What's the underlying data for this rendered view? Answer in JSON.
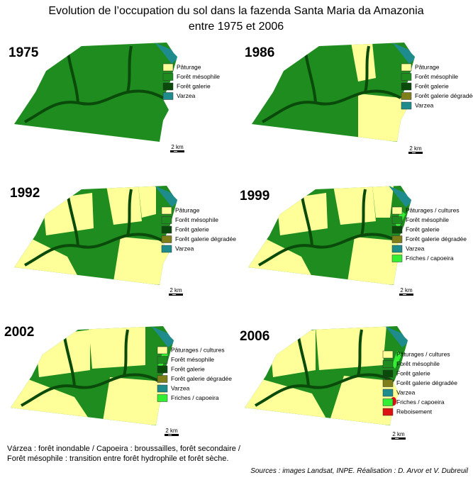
{
  "title": [
    "Evolution de l’occupation du sol dans la fazenda Santa Maria da Amazonia",
    "entre 1975 et 2006"
  ],
  "panels": [
    {
      "year": "1975",
      "scale": "2 km",
      "legend": [
        {
          "label": "Pâturage",
          "color": "#ffff99"
        },
        {
          "label": "Forêt mésophile",
          "color": "#1e8c1e"
        },
        {
          "label": "Forêt galerie",
          "color": "#0a4a0a"
        },
        {
          "label": "Varzea",
          "color": "#1e8c8c"
        }
      ]
    },
    {
      "year": "1986",
      "scale": "2 km",
      "legend": [
        {
          "label": "Pâturage",
          "color": "#ffff99"
        },
        {
          "label": "Forêt mésophile",
          "color": "#1e8c1e"
        },
        {
          "label": "Forêt galerie",
          "color": "#0a4a0a"
        },
        {
          "label": "Forêt galerie dégradée",
          "color": "#7f7f1a"
        },
        {
          "label": "Varzea",
          "color": "#1e8c8c"
        }
      ]
    },
    {
      "year": "1992",
      "scale": "2 km",
      "legend": [
        {
          "label": "Pâturage",
          "color": "#ffff99"
        },
        {
          "label": "Forêt mésophile",
          "color": "#1e8c1e"
        },
        {
          "label": "Forêt galerie",
          "color": "#0a4a0a"
        },
        {
          "label": "Forêt galerie dégradée",
          "color": "#7f7f1a"
        },
        {
          "label": "Varzea",
          "color": "#1e8c8c"
        }
      ]
    },
    {
      "year": "1999",
      "scale": "2 km",
      "legend": [
        {
          "label": "Pâturages / cultures",
          "color": "#ffff99"
        },
        {
          "label": "Forêt mésophile",
          "color": "#1e8c1e"
        },
        {
          "label": "Forêt galerie",
          "color": "#0a4a0a"
        },
        {
          "label": "Forêt galerie dégradée",
          "color": "#7f7f1a"
        },
        {
          "label": "Varzea",
          "color": "#1e8c8c"
        },
        {
          "label": "Friches / capoeira",
          "color": "#33ee33"
        }
      ]
    },
    {
      "year": "2002",
      "scale": "2 km",
      "legend": [
        {
          "label": "Pâturages / cultures",
          "color": "#ffff99"
        },
        {
          "label": "Forêt mésophile",
          "color": "#1e8c1e"
        },
        {
          "label": "Forêt galerie",
          "color": "#0a4a0a"
        },
        {
          "label": "Forêt galerie dégradée",
          "color": "#7f7f1a"
        },
        {
          "label": "Varzea",
          "color": "#1e8c8c"
        },
        {
          "label": "Friches / capoeira",
          "color": "#33ee33"
        }
      ]
    },
    {
      "year": "2006",
      "scale": "2 km",
      "legend": [
        {
          "label": "Pâturages / cultures",
          "color": "#ffff99"
        },
        {
          "label": "Forêt mésophile",
          "color": "#1e8c1e"
        },
        {
          "label": "Forêt galerie",
          "color": "#0a4a0a"
        },
        {
          "label": "Forêt galerie dégradée",
          "color": "#7f7f1a"
        },
        {
          "label": "Varzea",
          "color": "#1e8c8c"
        },
        {
          "label": "Friches / capoeira",
          "color": "#33ee33"
        },
        {
          "label": "Reboisement",
          "color": "#dd1111"
        }
      ]
    }
  ],
  "footnote": [
    "Várzea : forêt inondable / Capoeira : broussailles, forêt secondaire /",
    "Forêt mésophile : transition entre forêt hydrophile et forêt sèche."
  ],
  "sources": "Sources : images Landsat, INPE. Réalisation : D. Arvor et V. Dubreuil"
}
